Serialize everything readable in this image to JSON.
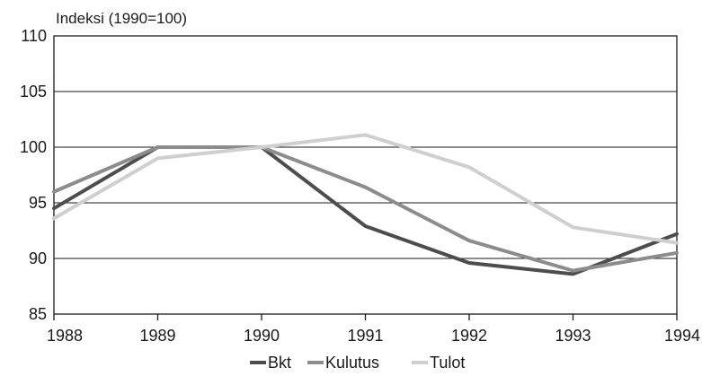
{
  "chart_data": {
    "type": "line",
    "unit_label": "Indeksi (1990=100)",
    "x": [
      "1988",
      "1989",
      "1990",
      "1991",
      "1992",
      "1993",
      "1994"
    ],
    "ylim": [
      85,
      110
    ],
    "yticks": [
      85,
      90,
      95,
      100,
      105,
      110
    ],
    "grid": "horizontal",
    "legend_position": "bottom",
    "series": [
      {
        "name": "Bkt",
        "color": "#4d4d4d",
        "values": [
          94.5,
          100.0,
          100.0,
          92.9,
          89.6,
          88.6,
          92.2
        ]
      },
      {
        "name": "Kulutus",
        "color": "#8c8c8c",
        "values": [
          96.0,
          100.0,
          100.0,
          96.4,
          91.6,
          88.9,
          90.5
        ]
      },
      {
        "name": "Tulot",
        "color": "#cfcfcf",
        "values": [
          93.6,
          99.0,
          100.0,
          101.1,
          98.2,
          92.8,
          91.4
        ]
      }
    ]
  }
}
